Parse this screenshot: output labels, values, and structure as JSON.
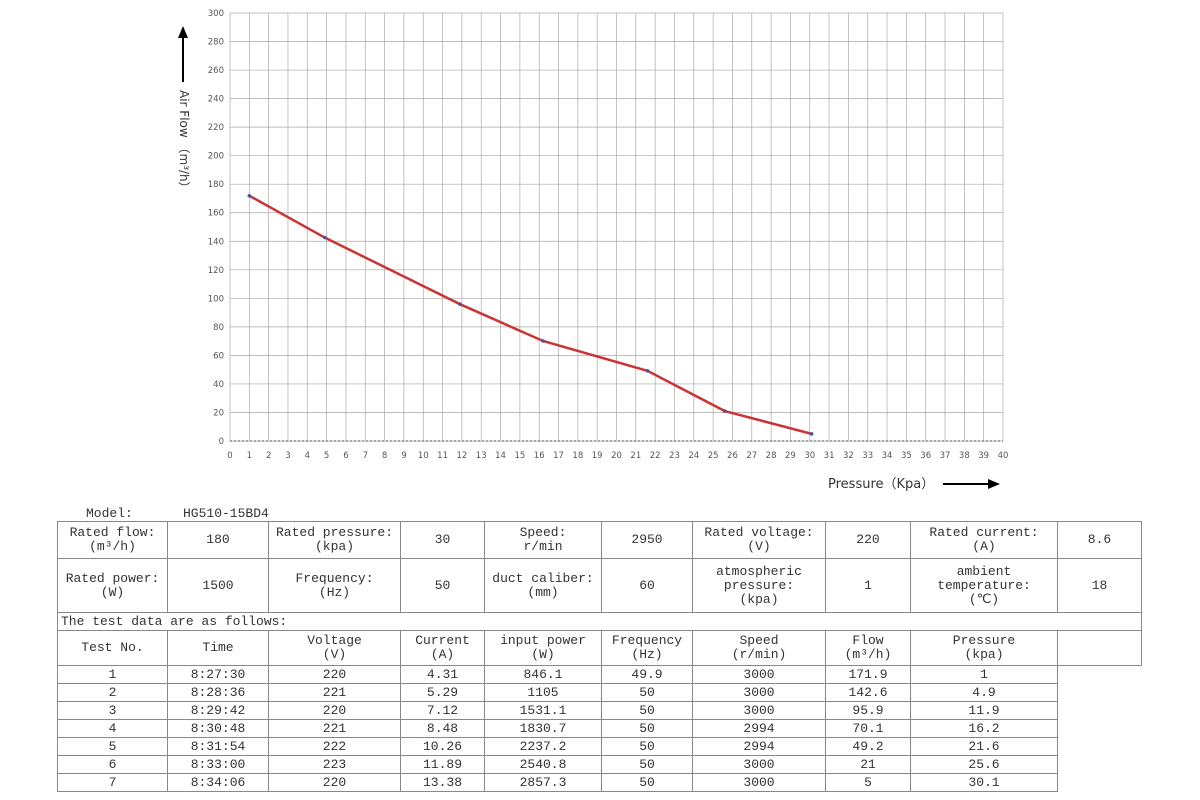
{
  "chart_data": {
    "type": "line",
    "y_label": "Air Flow （m³/h）",
    "x_label": "Pressure（Kpa）",
    "x": [
      1,
      4.9,
      11.9,
      16.2,
      21.6,
      25.6,
      30.1
    ],
    "series": [
      {
        "color": "#cc3333",
        "values": [
          171.9,
          142.6,
          95.9,
          70.1,
          49.2,
          21,
          5
        ]
      }
    ],
    "xlim": [
      0,
      40
    ],
    "xticks": [
      0,
      1,
      2,
      3,
      4,
      5,
      6,
      7,
      8,
      9,
      10,
      11,
      12,
      13,
      14,
      15,
      16,
      17,
      18,
      19,
      20,
      21,
      22,
      23,
      24,
      25,
      26,
      27,
      28,
      29,
      30,
      31,
      32,
      33,
      34,
      35,
      36,
      37,
      38,
      39,
      40
    ],
    "ylim": [
      0,
      300
    ],
    "yticks": [
      0,
      20,
      40,
      60,
      80,
      100,
      120,
      140,
      160,
      180,
      200,
      220,
      240,
      260,
      280,
      300
    ],
    "grid": true
  },
  "model": {
    "label": "Model:",
    "value": "HG510-15BD4"
  },
  "specs": [
    [
      "Rated flow:\n(m³/h)",
      "180",
      "Rated pressure:\n(kpa)",
      "30",
      "Speed:\nr/min",
      "2950",
      "Rated voltage:\n(V)",
      "220",
      "Rated current:\n(A)",
      "8.6"
    ],
    [
      "Rated power:\n(W)",
      "1500",
      "Frequency:\n(Hz)",
      "50",
      "duct caliber:\n(mm)",
      "60",
      "atmospheric\npressure:\n(kpa)",
      "1",
      "ambient\ntemperature:\n(℃)",
      "18"
    ]
  ],
  "test_note": "The test data are as follows:",
  "test_table": {
    "header": [
      "Test No.",
      "Time",
      "Voltage\n(V)",
      "Current\n(A)",
      "input power\n(W)",
      "Frequency\n(Hz)",
      "Speed\n(r/min)",
      "Flow\n(m³/h)",
      "Pressure\n(kpa)"
    ],
    "rows": [
      [
        "1",
        "8:27:30",
        "220",
        "4.31",
        "846.1",
        "49.9",
        "3000",
        "171.9",
        "1"
      ],
      [
        "2",
        "8:28:36",
        "221",
        "5.29",
        "1105",
        "50",
        "3000",
        "142.6",
        "4.9"
      ],
      [
        "3",
        "8:29:42",
        "220",
        "7.12",
        "1531.1",
        "50",
        "3000",
        "95.9",
        "11.9"
      ],
      [
        "4",
        "8:30:48",
        "221",
        "8.48",
        "1830.7",
        "50",
        "2994",
        "70.1",
        "16.2"
      ],
      [
        "5",
        "8:31:54",
        "222",
        "10.26",
        "2237.2",
        "50",
        "2994",
        "49.2",
        "21.6"
      ],
      [
        "6",
        "8:33:00",
        "223",
        "11.89",
        "2540.8",
        "50",
        "3000",
        "21",
        "25.6"
      ],
      [
        "7",
        "8:34:06",
        "220",
        "13.38",
        "2857.3",
        "50",
        "3000",
        "5",
        "30.1"
      ]
    ]
  }
}
